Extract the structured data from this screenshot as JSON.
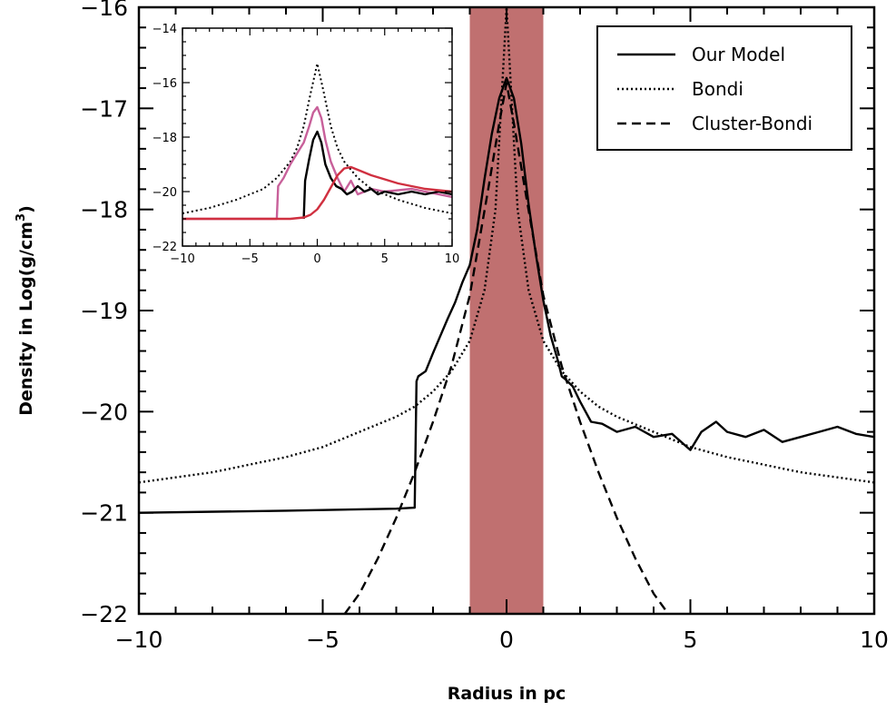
{
  "chart_data": [
    {
      "type": "line",
      "xlabel": "Radius in pc",
      "ylabel_prefix": "Density in Log(g/cm",
      "ylabel_sup": "3",
      "ylabel_suffix": ")",
      "xlim": [
        -10,
        10
      ],
      "ylim": [
        -22,
        -16
      ],
      "x_ticks": [
        -10,
        -5,
        0,
        5,
        10
      ],
      "y_ticks": [
        -22,
        -21,
        -20,
        -19,
        -18,
        -17,
        -16
      ],
      "x_tick_labels": [
        "−10",
        "−5",
        "0",
        "5",
        "10"
      ],
      "y_tick_labels": [
        "−22",
        "−21",
        "−20",
        "−19",
        "−18",
        "−17",
        "−16"
      ],
      "shaded_band": {
        "x_range": [
          -1,
          1
        ],
        "color": "#c07070"
      },
      "legend": {
        "position": "top-right",
        "entries": [
          {
            "label": "Our Model",
            "style": "solid"
          },
          {
            "label": "Bondi",
            "style": "dotted"
          },
          {
            "label": "Cluster-Bondi",
            "style": "dashed"
          }
        ]
      },
      "series": [
        {
          "name": "Our Model",
          "style": "solid",
          "color": "#000000",
          "x": [
            -10,
            -6,
            -3,
            -2.5,
            -2.45,
            -2.4,
            -2.2,
            -2.0,
            -1.8,
            -1.6,
            -1.4,
            -1.2,
            -1.0,
            -0.8,
            -0.6,
            -0.4,
            -0.2,
            0.0,
            0.2,
            0.4,
            0.6,
            0.8,
            1.0,
            1.2,
            1.4,
            1.5,
            1.6,
            1.8,
            2.0,
            2.3,
            2.6,
            3.0,
            3.5,
            4.0,
            4.5,
            5.0,
            5.3,
            5.7,
            6.0,
            6.5,
            7.0,
            7.5,
            8.0,
            8.5,
            9.0,
            9.5,
            10.0
          ],
          "y": [
            -21.0,
            -20.98,
            -20.96,
            -20.95,
            -19.7,
            -19.65,
            -19.6,
            -19.42,
            -19.25,
            -19.08,
            -18.92,
            -18.72,
            -18.55,
            -18.2,
            -17.7,
            -17.25,
            -16.9,
            -16.7,
            -16.9,
            -17.35,
            -17.95,
            -18.45,
            -18.9,
            -19.25,
            -19.5,
            -19.65,
            -19.68,
            -19.75,
            -19.9,
            -20.1,
            -20.12,
            -20.2,
            -20.15,
            -20.25,
            -20.22,
            -20.38,
            -20.2,
            -20.1,
            -20.2,
            -20.25,
            -20.18,
            -20.3,
            -20.25,
            -20.2,
            -20.15,
            -20.22,
            -20.25
          ]
        },
        {
          "name": "Bondi",
          "style": "dotted",
          "color": "#000000",
          "x": [
            -10,
            -8,
            -6,
            -5,
            -4,
            -3,
            -2.5,
            -2,
            -1.5,
            -1,
            -0.6,
            -0.3,
            -0.15,
            0,
            0.15,
            0.3,
            0.6,
            1,
            1.5,
            2,
            2.5,
            3,
            4,
            5,
            6,
            8,
            10
          ],
          "y": [
            -20.7,
            -20.6,
            -20.45,
            -20.35,
            -20.2,
            -20.05,
            -19.95,
            -19.8,
            -19.6,
            -19.3,
            -18.8,
            -18.0,
            -17.0,
            -16.0,
            -17.0,
            -18.0,
            -18.8,
            -19.3,
            -19.6,
            -19.8,
            -19.95,
            -20.05,
            -20.2,
            -20.35,
            -20.45,
            -20.6,
            -20.7
          ]
        },
        {
          "name": "Cluster-Bondi",
          "style": "dashed",
          "color": "#000000",
          "x": [
            -4.4,
            -4,
            -3.5,
            -3,
            -2.5,
            -2,
            -1.5,
            -1,
            -0.5,
            -0.2,
            0,
            0.2,
            0.5,
            1,
            1.5,
            2,
            2.5,
            3,
            3.5,
            4,
            4.4
          ],
          "y": [
            -22.0,
            -21.8,
            -21.45,
            -21.05,
            -20.6,
            -20.1,
            -19.55,
            -18.85,
            -17.8,
            -17.15,
            -16.75,
            -17.15,
            -17.8,
            -18.85,
            -19.55,
            -20.1,
            -20.6,
            -21.05,
            -21.45,
            -21.8,
            -22.0
          ]
        }
      ]
    },
    {
      "type": "line",
      "position": "inset-top-left",
      "xlim": [
        -10,
        10
      ],
      "ylim": [
        -22,
        -14
      ],
      "x_ticks": [
        -10,
        -5,
        0,
        5,
        10
      ],
      "y_ticks": [
        -22,
        -20,
        -18,
        -16,
        -14
      ],
      "x_tick_labels": [
        "−10",
        "−5",
        "0",
        "5",
        "10"
      ],
      "y_tick_labels": [
        "−22",
        "−20",
        "−18",
        "−16",
        "−14"
      ],
      "series": [
        {
          "style": "dotted",
          "color": "#000000",
          "x": [
            -10,
            -8,
            -6,
            -4,
            -3,
            -2,
            -1.5,
            -1,
            -0.5,
            0,
            0.5,
            1,
            1.5,
            2,
            3,
            4,
            6,
            8,
            10
          ],
          "y": [
            -20.8,
            -20.6,
            -20.3,
            -19.9,
            -19.5,
            -18.9,
            -18.4,
            -17.6,
            -16.4,
            -15.3,
            -16.4,
            -17.6,
            -18.4,
            -18.9,
            -19.5,
            -19.9,
            -20.3,
            -20.6,
            -20.8
          ]
        },
        {
          "style": "solid",
          "color": "#c8609a",
          "x": [
            -10,
            -5,
            -3.0,
            -2.9,
            -2.5,
            -2,
            -1.5,
            -1,
            -0.6,
            -0.3,
            0,
            0.3,
            0.6,
            1,
            1.5,
            2,
            2.5,
            3,
            4,
            5,
            7,
            10
          ],
          "y": [
            -21.0,
            -21.0,
            -21.0,
            -19.8,
            -19.5,
            -19.0,
            -18.6,
            -18.2,
            -17.6,
            -17.1,
            -16.9,
            -17.3,
            -18.1,
            -18.9,
            -19.5,
            -20.0,
            -19.6,
            -20.1,
            -19.9,
            -20.0,
            -19.9,
            -20.2
          ]
        },
        {
          "style": "solid",
          "color": "#000000",
          "x": [
            -1.0,
            -0.9,
            -0.6,
            -0.3,
            0,
            0.3,
            0.6,
            1.0,
            1.4,
            1.8,
            2.2,
            2.6,
            3.0,
            3.5,
            4.0,
            4.5,
            5.0,
            6.0,
            7.0,
            8.0,
            9.0,
            10.0
          ],
          "y": [
            -21.0,
            -19.6,
            -18.8,
            -18.1,
            -17.8,
            -18.2,
            -19.0,
            -19.5,
            -19.8,
            -19.9,
            -20.1,
            -20.0,
            -19.8,
            -20.0,
            -19.9,
            -20.1,
            -20.0,
            -20.1,
            -20.0,
            -20.1,
            -20.0,
            -20.1
          ]
        },
        {
          "style": "solid",
          "color": "#d03040",
          "x": [
            -10,
            -5,
            -2,
            -1,
            -0.5,
            0,
            0.5,
            1,
            1.5,
            2,
            2.5,
            3,
            4,
            5,
            6,
            7,
            8,
            9,
            10
          ],
          "y": [
            -21.0,
            -21.0,
            -21.0,
            -20.95,
            -20.85,
            -20.65,
            -20.3,
            -19.85,
            -19.4,
            -19.15,
            -19.1,
            -19.2,
            -19.4,
            -19.55,
            -19.7,
            -19.8,
            -19.9,
            -19.95,
            -20.0
          ]
        }
      ]
    }
  ]
}
